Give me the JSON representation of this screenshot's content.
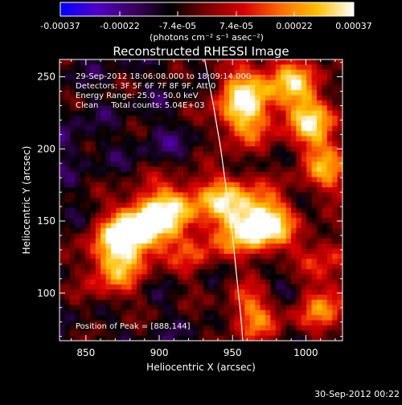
{
  "chart_data": {
    "type": "heatmap",
    "title": "Reconstructed RHESSI Image",
    "xlabel": "Heliocentric X (arcsec)",
    "ylabel": "Heliocentric Y (arcsec)",
    "xlim": [
      832,
      1025
    ],
    "ylim": [
      67,
      262
    ],
    "x_ticks": [
      850,
      900,
      950,
      1000
    ],
    "y_ticks": [
      100,
      150,
      200,
      250
    ],
    "colorbar": {
      "range": [
        -0.00037,
        0.00037
      ],
      "tick_values": [
        -0.00037,
        -0.00022,
        -7.4e-05,
        7.4e-05,
        0.00022,
        0.00037
      ],
      "tick_labels": [
        "-0.00037",
        "-0.00022",
        "-7.4e-05",
        "7.4e-05",
        "0.00022",
        "0.00037"
      ],
      "units_label": "(photons cm⁻² s⁻¹ asec⁻²)",
      "colors": [
        "#0000ff",
        "#5000c8",
        "#3c0060",
        "#000000",
        "#7a0000",
        "#d80000",
        "#ff6a00",
        "#ffc000",
        "#ffffff"
      ]
    },
    "annotations": [
      "29-Sep-2012 18:06:08.000 to 18:09:14.000",
      "Detectors: 3F 5F 6F 7F 8F 9F, Att 0",
      "Energy Range: 25.0 - 50.0 keV",
      "Clean     Total counts: 5.04E+03"
    ],
    "peak_label": "Position of Peak = [888,144]",
    "peak": [
      888,
      144
    ],
    "limb_curve": [
      [
        931,
        262
      ],
      [
        937,
        230
      ],
      [
        942,
        200
      ],
      [
        946,
        170
      ],
      [
        950,
        140
      ],
      [
        953,
        110
      ],
      [
        956,
        80
      ],
      [
        957,
        67
      ]
    ],
    "bright_sources": [
      {
        "x": 888,
        "y": 146,
        "value": 0.00037
      },
      {
        "x": 910,
        "y": 160,
        "value": 0.00024
      },
      {
        "x": 870,
        "y": 132,
        "value": 0.00022
      },
      {
        "x": 945,
        "y": 166,
        "value": 0.00022
      },
      {
        "x": 963,
        "y": 145,
        "value": 0.00022
      },
      {
        "x": 975,
        "y": 150,
        "value": 0.00021
      },
      {
        "x": 930,
        "y": 124,
        "value": 0.00016
      },
      {
        "x": 868,
        "y": 110,
        "value": 0.0001
      },
      {
        "x": 1004,
        "y": 218,
        "value": 0.00026
      },
      {
        "x": 957,
        "y": 222,
        "value": 0.00026
      },
      {
        "x": 991,
        "y": 247,
        "value": 0.00022
      },
      {
        "x": 958,
        "y": 245,
        "value": 0.00016
      },
      {
        "x": 1015,
        "y": 185,
        "value": 0.00019
      },
      {
        "x": 965,
        "y": 86,
        "value": 0.0002
      },
      {
        "x": 1013,
        "y": 90,
        "value": 0.00018
      },
      {
        "x": 1010,
        "y": 125,
        "value": 0.0001
      }
    ],
    "dark_sources": [
      {
        "x": 840,
        "y": 205,
        "value": -0.00016
      },
      {
        "x": 846,
        "y": 238,
        "value": -0.0001
      },
      {
        "x": 900,
        "y": 205,
        "value": -0.00014
      },
      {
        "x": 923,
        "y": 197,
        "value": -0.00012
      },
      {
        "x": 937,
        "y": 116,
        "value": -0.00022
      },
      {
        "x": 989,
        "y": 106,
        "value": -0.0002
      },
      {
        "x": 1000,
        "y": 160,
        "value": -0.00012
      },
      {
        "x": 983,
        "y": 212,
        "value": -0.00011
      },
      {
        "x": 1018,
        "y": 150,
        "value": -0.0001
      },
      {
        "x": 960,
        "y": 255,
        "value": -0.0001
      }
    ]
  },
  "footer": {
    "timestamp": "30-Sep-2012 00:22"
  }
}
